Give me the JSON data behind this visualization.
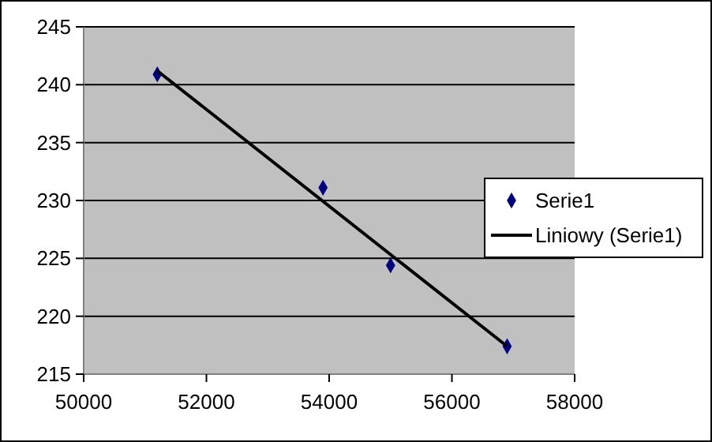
{
  "chart_data": {
    "type": "scatter",
    "xlim": [
      50000,
      58000
    ],
    "xticks": [
      50000,
      52000,
      54000,
      56000,
      58000
    ],
    "ylim": [
      215,
      245
    ],
    "yticks": [
      215,
      220,
      225,
      230,
      235,
      240,
      245
    ],
    "grid": "y",
    "legend": "right",
    "line_style": "solid",
    "series": [
      {
        "name": "Serie1",
        "color": "#000080",
        "marker": "diamond",
        "x": [
          51200,
          53900,
          55000,
          56900
        ],
        "values": [
          240.9,
          231.1,
          224.4,
          217.4
        ]
      },
      {
        "name": "Liniowy (Serie1)",
        "type": "line",
        "marker": "none",
        "color": "#000000",
        "x": [
          51200,
          56900
        ],
        "values": [
          241.2,
          217.4
        ]
      }
    ]
  }
}
